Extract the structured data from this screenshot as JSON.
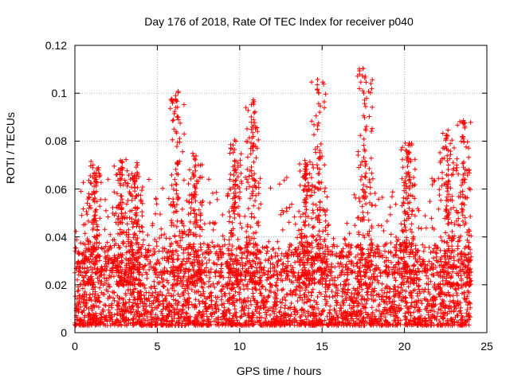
{
  "chart_data": {
    "type": "scatter",
    "title": "Day 176 of 2018, Rate Of TEC Index for receiver p040",
    "xlabel": "GPS time / hours",
    "ylabel": "ROTI / TECUs",
    "xlim": [
      0,
      25
    ],
    "ylim": [
      0,
      0.12
    ],
    "xticks": [
      "0",
      "5",
      "10",
      "15",
      "20",
      "25"
    ],
    "yticks": [
      "0",
      "0.02",
      "0.04",
      "0.06",
      "0.08",
      "0.1",
      "0.12"
    ],
    "grid": true,
    "marker": "+",
    "color": "#ff0000",
    "series": [
      {
        "name": "p040",
        "x_range": [
          0,
          24
        ],
        "baseline_band": [
          0.003,
          0.025
        ],
        "notable_peaks": [
          {
            "x": 1.2,
            "y": 0.072
          },
          {
            "x": 2.8,
            "y": 0.073
          },
          {
            "x": 3.7,
            "y": 0.071
          },
          {
            "x": 6.2,
            "y": 0.101
          },
          {
            "x": 7.3,
            "y": 0.076
          },
          {
            "x": 9.7,
            "y": 0.081
          },
          {
            "x": 10.8,
            "y": 0.098
          },
          {
            "x": 14.0,
            "y": 0.072
          },
          {
            "x": 14.8,
            "y": 0.106
          },
          {
            "x": 17.6,
            "y": 0.111
          },
          {
            "x": 20.2,
            "y": 0.08
          },
          {
            "x": 22.6,
            "y": 0.086
          },
          {
            "x": 23.6,
            "y": 0.089
          }
        ]
      }
    ]
  }
}
